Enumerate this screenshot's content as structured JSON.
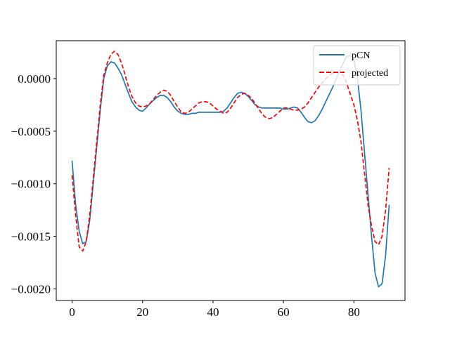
{
  "chart_data": {
    "type": "line",
    "title": "",
    "xlabel": "",
    "ylabel": "",
    "xlim": [
      -4.5,
      94.5
    ],
    "ylim": [
      -0.00211,
      0.00036
    ],
    "x_ticks": [
      0,
      20,
      40,
      60,
      80
    ],
    "x_tick_labels": [
      "0",
      "20",
      "40",
      "60",
      "80"
    ],
    "y_ticks": [
      0.0,
      -0.0005,
      -0.001,
      -0.0015,
      -0.002
    ],
    "y_tick_labels": [
      "0.0000",
      "−0.0005",
      "−0.0010",
      "−0.0015",
      "−0.0020"
    ],
    "grid": false,
    "legend_position": "top-right",
    "series": [
      {
        "name": "pCN",
        "color": "#1f77b4",
        "dash": "solid",
        "x": [
          0,
          1,
          2,
          3,
          4,
          5,
          6,
          7,
          8,
          9,
          10,
          11,
          12,
          13,
          14,
          15,
          16,
          17,
          18,
          19,
          20,
          21,
          22,
          23,
          24,
          25,
          26,
          27,
          28,
          29,
          30,
          31,
          32,
          33,
          34,
          35,
          36,
          37,
          38,
          39,
          40,
          41,
          42,
          43,
          44,
          45,
          46,
          47,
          48,
          49,
          50,
          51,
          52,
          53,
          54,
          55,
          56,
          57,
          58,
          59,
          60,
          61,
          62,
          63,
          64,
          65,
          66,
          67,
          68,
          69,
          70,
          71,
          72,
          73,
          74,
          75,
          76,
          77,
          78,
          79,
          80,
          81,
          82,
          83,
          84,
          85,
          86,
          87,
          88,
          89,
          90
        ],
        "y": [
          -0.00078,
          -0.0012,
          -0.00145,
          -0.00157,
          -0.00155,
          -0.00135,
          -0.001,
          -0.00065,
          -0.0003,
          0.0,
          0.00012,
          0.00016,
          0.00015,
          0.0001,
          4e-05,
          -5e-05,
          -0.00014,
          -0.00022,
          -0.00027,
          -0.0003,
          -0.00031,
          -0.00028,
          -0.00024,
          -0.00021,
          -0.00018,
          -0.00016,
          -0.00016,
          -0.00018,
          -0.00022,
          -0.00027,
          -0.00031,
          -0.00033,
          -0.00034,
          -0.00034,
          -0.00033,
          -0.00033,
          -0.00032,
          -0.00032,
          -0.00032,
          -0.00032,
          -0.00032,
          -0.00032,
          -0.00032,
          -0.00031,
          -0.00028,
          -0.00023,
          -0.00018,
          -0.00014,
          -0.00013,
          -0.00014,
          -0.00017,
          -0.00021,
          -0.00025,
          -0.00027,
          -0.00028,
          -0.00028,
          -0.00028,
          -0.00028,
          -0.00028,
          -0.00028,
          -0.00029,
          -0.00029,
          -0.00028,
          -0.00027,
          -0.00028,
          -0.00032,
          -0.00037,
          -0.00041,
          -0.00042,
          -0.0004,
          -0.00035,
          -0.00029,
          -0.00022,
          -0.00015,
          -8e-05,
          0.0,
          8e-05,
          0.00015,
          0.00021,
          0.00022,
          0.00018,
          0.0,
          -0.0003,
          -0.0007,
          -0.0011,
          -0.0015,
          -0.00185,
          -0.00198,
          -0.00195,
          -0.00168,
          -0.0012
        ]
      },
      {
        "name": "projected",
        "color": "#ff0000",
        "dash": "dashed",
        "x": [
          0,
          1,
          2,
          3,
          4,
          5,
          6,
          7,
          8,
          9,
          10,
          11,
          12,
          13,
          14,
          15,
          16,
          17,
          18,
          19,
          20,
          21,
          22,
          23,
          24,
          25,
          26,
          27,
          28,
          29,
          30,
          31,
          32,
          33,
          34,
          35,
          36,
          37,
          38,
          39,
          40,
          41,
          42,
          43,
          44,
          45,
          46,
          47,
          48,
          49,
          50,
          51,
          52,
          53,
          54,
          55,
          56,
          57,
          58,
          59,
          60,
          61,
          62,
          63,
          64,
          65,
          66,
          67,
          68,
          69,
          70,
          71,
          72,
          73,
          74,
          75,
          76,
          77,
          78,
          79,
          80,
          81,
          82,
          83,
          84,
          85,
          86,
          87,
          88,
          89,
          90
        ],
        "y": [
          -0.00092,
          -0.0013,
          -0.0016,
          -0.00164,
          -0.00155,
          -0.0013,
          -0.00095,
          -0.0006,
          -0.00025,
          3e-05,
          0.00015,
          0.00023,
          0.00026,
          0.00023,
          0.00015,
          4e-05,
          -8e-05,
          -0.00017,
          -0.00023,
          -0.00026,
          -0.00027,
          -0.00026,
          -0.00024,
          -0.0002,
          -0.00016,
          -0.00013,
          -0.00011,
          -0.00012,
          -0.00016,
          -0.00022,
          -0.00027,
          -0.00032,
          -0.00033,
          -0.00032,
          -0.00029,
          -0.00026,
          -0.00023,
          -0.00022,
          -0.00022,
          -0.00023,
          -0.00026,
          -0.00029,
          -0.00031,
          -0.00033,
          -0.00032,
          -0.00028,
          -0.00023,
          -0.00018,
          -0.00015,
          -0.00014,
          -0.00016,
          -0.00019,
          -0.00024,
          -0.00029,
          -0.00034,
          -0.00037,
          -0.00038,
          -0.00037,
          -0.00034,
          -0.00031,
          -0.00028,
          -0.00028,
          -0.00029,
          -0.0003,
          -0.0003,
          -0.00029,
          -0.00027,
          -0.00023,
          -0.00018,
          -0.00013,
          -8e-05,
          -4e-05,
          0.0,
          3e-05,
          5e-05,
          6e-05,
          5e-05,
          3e-05,
          -5e-05,
          -0.00015,
          -0.00025,
          -0.0004,
          -0.0006,
          -0.0009,
          -0.0012,
          -0.0014,
          -0.00155,
          -0.00158,
          -0.0015,
          -0.00125,
          -0.00085
        ]
      }
    ]
  }
}
